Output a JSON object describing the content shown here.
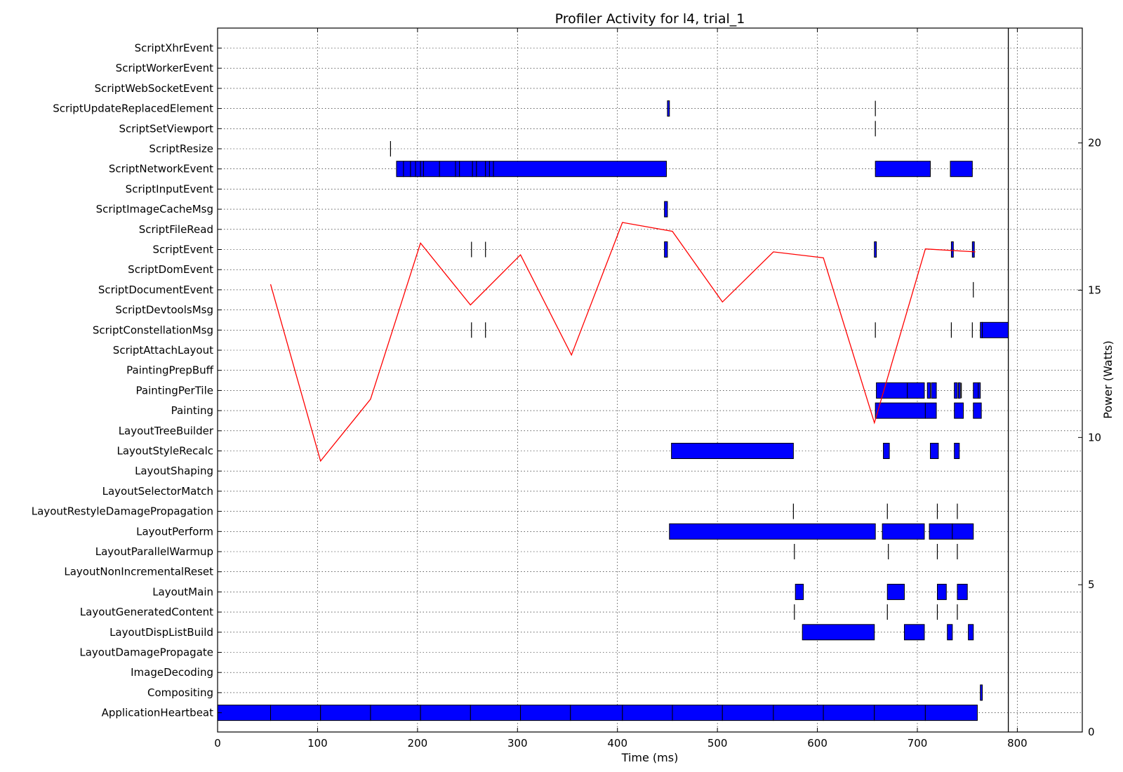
{
  "chart_data": {
    "type": "bar",
    "subtype": "broken-barh timeline with secondary line",
    "title": "Profiler Activity for l4, trial_1",
    "xlabel": "Time (ms)",
    "ylabel_right": "Power (Watts)",
    "xlim": [
      0,
      865
    ],
    "x_ticks": [
      0,
      100,
      200,
      300,
      400,
      500,
      600,
      700,
      800
    ],
    "y2lim": [
      0,
      23.9
    ],
    "y2_ticks": [
      0,
      5,
      10,
      15,
      20
    ],
    "grid": true,
    "vertical_line_x": 791,
    "categories": [
      "ApplicationHeartbeat",
      "Compositing",
      "ImageDecoding",
      "LayoutDamagePropagate",
      "LayoutDispListBuild",
      "LayoutGeneratedContent",
      "LayoutMain",
      "LayoutNonIncrementalReset",
      "LayoutParallelWarmup",
      "LayoutPerform",
      "LayoutRestyleDamagePropagation",
      "LayoutSelectorMatch",
      "LayoutShaping",
      "LayoutStyleRecalc",
      "LayoutTreeBuilder",
      "Painting",
      "PaintingPerTile",
      "PaintingPrepBuff",
      "ScriptAttachLayout",
      "ScriptConstellationMsg",
      "ScriptDevtoolsMsg",
      "ScriptDocumentEvent",
      "ScriptDomEvent",
      "ScriptEvent",
      "ScriptFileRead",
      "ScriptImageCacheMsg",
      "ScriptInputEvent",
      "ScriptNetworkEvent",
      "ScriptResize",
      "ScriptSetViewport",
      "ScriptUpdateReplacedElement",
      "ScriptWebSocketEvent",
      "ScriptWorkerEvent",
      "ScriptXhrEvent"
    ],
    "segments": {
      "ApplicationHeartbeat": [
        [
          0,
          53
        ],
        [
          53,
          103
        ],
        [
          103,
          153
        ],
        [
          153,
          203
        ],
        [
          203,
          253
        ],
        [
          253,
          303
        ],
        [
          303,
          353
        ],
        [
          353,
          405
        ],
        [
          405,
          455
        ],
        [
          455,
          505
        ],
        [
          505,
          556
        ],
        [
          556,
          606
        ],
        [
          606,
          657
        ],
        [
          657,
          708
        ],
        [
          708,
          760
        ]
      ],
      "Compositing": [
        [
          763,
          765
        ]
      ],
      "LayoutDispListBuild": [
        [
          585,
          657
        ],
        [
          687,
          707
        ],
        [
          730,
          735
        ],
        [
          751,
          756
        ]
      ],
      "LayoutGeneratedContent": [
        [
          577,
          578
        ],
        [
          670,
          671
        ],
        [
          720,
          721
        ],
        [
          740,
          741
        ]
      ],
      "LayoutMain": [
        [
          578,
          586
        ],
        [
          670,
          687
        ],
        [
          720,
          729
        ],
        [
          740,
          750
        ]
      ],
      "LayoutParallelWarmup": [
        [
          577,
          578
        ],
        [
          671,
          672
        ],
        [
          720,
          721
        ],
        [
          740,
          741
        ]
      ],
      "LayoutPerform": [
        [
          452,
          658
        ],
        [
          665,
          707
        ],
        [
          712,
          735
        ],
        [
          735,
          756
        ]
      ],
      "LayoutRestyleDamagePropagation": [
        [
          576,
          577
        ],
        [
          670,
          671
        ],
        [
          720,
          721
        ],
        [
          740,
          741
        ]
      ],
      "LayoutStyleRecalc": [
        [
          454,
          576
        ],
        [
          666,
          672
        ],
        [
          713,
          721
        ],
        [
          737,
          742
        ]
      ],
      "Painting": [
        [
          658,
          708
        ],
        [
          708,
          719
        ],
        [
          737,
          746
        ],
        [
          756,
          764
        ]
      ],
      "PaintingPerTile": [
        [
          659,
          690
        ],
        [
          690,
          707
        ],
        [
          710,
          713
        ],
        [
          714,
          719
        ],
        [
          737,
          740
        ],
        [
          741,
          743
        ],
        [
          744,
          745
        ],
        [
          756,
          761
        ],
        [
          761,
          763
        ]
      ],
      "ScriptConstellationMsg": [
        [
          254,
          255
        ],
        [
          268,
          269
        ],
        [
          658,
          659
        ],
        [
          734,
          735
        ],
        [
          755,
          756
        ],
        [
          763,
          765
        ],
        [
          765,
          791
        ]
      ],
      "ScriptDocumentEvent": [
        [
          756,
          757
        ]
      ],
      "ScriptEvent": [
        [
          254,
          255
        ],
        [
          268,
          269
        ],
        [
          447,
          450
        ],
        [
          657,
          659
        ],
        [
          734,
          736
        ],
        [
          755,
          757
        ]
      ],
      "ScriptImageCacheMsg": [
        [
          447,
          450
        ]
      ],
      "ScriptNetworkEvent": [
        [
          179,
          186
        ],
        [
          186,
          193
        ],
        [
          193,
          198
        ],
        [
          198,
          203
        ],
        [
          203,
          206
        ],
        [
          206,
          222
        ],
        [
          222,
          238
        ],
        [
          238,
          242
        ],
        [
          242,
          255
        ],
        [
          255,
          259
        ],
        [
          259,
          268
        ],
        [
          268,
          272
        ],
        [
          272,
          276
        ],
        [
          276,
          449
        ],
        [
          658,
          713
        ],
        [
          733,
          755
        ]
      ],
      "ScriptResize": [
        [
          173,
          174
        ]
      ],
      "ScriptSetViewport": [
        [
          658,
          659
        ]
      ],
      "ScriptUpdateReplacedElement": [
        [
          450,
          452
        ],
        [
          658,
          659
        ]
      ]
    },
    "power_series": {
      "x": [
        53,
        103,
        153,
        203,
        253,
        303,
        354,
        405,
        455,
        505,
        556,
        606,
        657,
        708,
        758
      ],
      "y": [
        15.2,
        9.2,
        11.3,
        16.6,
        14.5,
        16.2,
        12.8,
        17.3,
        17.0,
        14.6,
        16.3,
        16.1,
        10.5,
        16.4,
        16.3
      ]
    }
  }
}
